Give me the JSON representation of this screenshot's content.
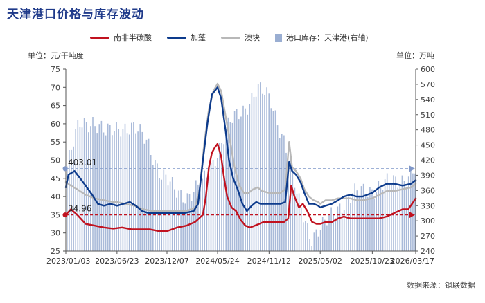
{
  "title": "天津港口价格与库存波动",
  "unit_left": "单位：元/干吨度",
  "unit_right": "单位：万吨",
  "source": "数据来源：钢联数据",
  "legend": [
    {
      "label": "南非半碳酸",
      "color": "#c1121f",
      "kind": "line"
    },
    {
      "label": "加蓬",
      "color": "#0d3b8c",
      "kind": "line"
    },
    {
      "label": "澳块",
      "color": "#b8b8b8",
      "kind": "line"
    },
    {
      "label": "港口库存：天津港(右轴)",
      "color": "#9aaed2",
      "kind": "bar"
    }
  ],
  "chart_data": {
    "type": "line",
    "x_ticks": [
      "2023/01/03",
      "2023/06/23",
      "2023/12/07",
      "2024/05/24",
      "2024/11/12",
      "2025/05/02",
      "2025/10/23",
      "2026/03/17"
    ],
    "x_range": [
      "2023/01/03",
      "2026/03/17"
    ],
    "ylim_left": [
      25,
      75
    ],
    "yticks_left": [
      25,
      30,
      35,
      40,
      45,
      50,
      55,
      60,
      65,
      70,
      75
    ],
    "ylim_right": [
      240,
      600
    ],
    "yticks_right": [
      240,
      270,
      300,
      330,
      360,
      390,
      420,
      450,
      480,
      510,
      540,
      570,
      600
    ],
    "annotations": [
      {
        "text": "403.01",
        "series": "港口库存：天津港(右轴)",
        "value": 403.01,
        "axis": "right",
        "color": "#7f97c8"
      },
      {
        "text": "34.96",
        "series": "南非半碳酸",
        "value": 34.96,
        "axis": "left",
        "color": "#c1121f"
      }
    ],
    "series": [
      {
        "name": "南非半碳酸",
        "axis": "left",
        "color": "#c1121f",
        "points": [
          [
            "2023/01/03",
            34.96
          ],
          [
            "2023/01/20",
            36.5
          ],
          [
            "2023/02/10",
            35
          ],
          [
            "2023/03/10",
            32.5
          ],
          [
            "2023/04/10",
            32
          ],
          [
            "2023/05/10",
            31.5
          ],
          [
            "2023/06/10",
            31.2
          ],
          [
            "2023/07/10",
            31.5
          ],
          [
            "2023/08/10",
            31
          ],
          [
            "2023/09/10",
            31
          ],
          [
            "2023/10/10",
            31
          ],
          [
            "2023/11/10",
            30.5
          ],
          [
            "2023/12/07",
            30.5
          ],
          [
            "2024/01/10",
            31.5
          ],
          [
            "2024/02/10",
            32
          ],
          [
            "2024/03/10",
            33
          ],
          [
            "2024/04/05",
            35
          ],
          [
            "2024/04/15",
            40
          ],
          [
            "2024/04/25",
            48
          ],
          [
            "2024/05/05",
            52
          ],
          [
            "2024/05/15",
            53.5
          ],
          [
            "2024/05/24",
            54.5
          ],
          [
            "2024/06/05",
            51
          ],
          [
            "2024/06/15",
            45
          ],
          [
            "2024/06/25",
            40
          ],
          [
            "2024/07/10",
            37
          ],
          [
            "2024/07/25",
            36
          ],
          [
            "2024/08/10",
            33.5
          ],
          [
            "2024/08/25",
            32
          ],
          [
            "2024/09/10",
            31.5
          ],
          [
            "2024/09/25",
            32
          ],
          [
            "2024/10/10",
            32.5
          ],
          [
            "2024/10/25",
            33
          ],
          [
            "2024/11/12",
            33
          ],
          [
            "2024/11/30",
            33
          ],
          [
            "2024/12/15",
            33
          ],
          [
            "2025/01/01",
            33
          ],
          [
            "2025/01/15",
            34
          ],
          [
            "2025/01/25",
            43
          ],
          [
            "2025/02/05",
            40
          ],
          [
            "2025/02/20",
            37
          ],
          [
            "2025/03/05",
            38
          ],
          [
            "2025/03/20",
            36
          ],
          [
            "2025/04/05",
            33
          ],
          [
            "2025/04/20",
            32.5
          ],
          [
            "2025/05/02",
            32.5
          ],
          [
            "2025/05/20",
            33
          ],
          [
            "2025/06/10",
            33
          ],
          [
            "2025/07/01",
            34
          ],
          [
            "2025/07/20",
            34.5
          ],
          [
            "2025/08/10",
            34
          ],
          [
            "2025/09/01",
            34
          ],
          [
            "2025/09/20",
            34
          ],
          [
            "2025/10/23",
            34
          ],
          [
            "2025/11/15",
            34
          ],
          [
            "2025/12/10",
            34.5
          ],
          [
            "2026/01/05",
            35.5
          ],
          [
            "2026/02/01",
            36.5
          ],
          [
            "2026/02/20",
            36.5
          ],
          [
            "2026/03/05",
            38
          ],
          [
            "2026/03/17",
            39.5
          ]
        ]
      },
      {
        "name": "加蓬",
        "axis": "left",
        "color": "#0d3b8c",
        "points": [
          [
            "2023/01/03",
            42.5
          ],
          [
            "2023/01/12",
            46
          ],
          [
            "2023/02/01",
            47
          ],
          [
            "2023/02/20",
            45
          ],
          [
            "2023/03/10",
            43
          ],
          [
            "2023/04/01",
            40.5
          ],
          [
            "2023/04/20",
            38
          ],
          [
            "2023/05/10",
            37.5
          ],
          [
            "2023/06/01",
            38
          ],
          [
            "2023/06/23",
            37.5
          ],
          [
            "2023/07/15",
            38
          ],
          [
            "2023/08/05",
            38.5
          ],
          [
            "2023/08/25",
            37.5
          ],
          [
            "2023/09/15",
            36
          ],
          [
            "2023/10/05",
            35.5
          ],
          [
            "2023/10/25",
            35.5
          ],
          [
            "2023/11/15",
            35.5
          ],
          [
            "2023/12/07",
            35.5
          ],
          [
            "2024/01/05",
            35.5
          ],
          [
            "2024/02/05",
            35.5
          ],
          [
            "2024/03/05",
            36
          ],
          [
            "2024/03/20",
            38
          ],
          [
            "2024/04/05",
            50
          ],
          [
            "2024/04/20",
            60
          ],
          [
            "2024/05/05",
            68
          ],
          [
            "2024/05/24",
            70
          ],
          [
            "2024/06/05",
            67
          ],
          [
            "2024/06/20",
            58
          ],
          [
            "2024/07/01",
            50
          ],
          [
            "2024/07/15",
            45
          ],
          [
            "2024/07/30",
            42
          ],
          [
            "2024/08/15",
            38
          ],
          [
            "2024/08/30",
            36
          ],
          [
            "2024/09/15",
            37.5
          ],
          [
            "2024/09/30",
            38.5
          ],
          [
            "2024/10/15",
            38
          ],
          [
            "2024/11/12",
            38
          ],
          [
            "2024/12/01",
            38
          ],
          [
            "2024/12/20",
            38
          ],
          [
            "2025/01/05",
            38.5
          ],
          [
            "2025/01/18",
            49.5
          ],
          [
            "2025/01/28",
            47
          ],
          [
            "2025/02/10",
            46
          ],
          [
            "2025/02/25",
            44
          ],
          [
            "2025/03/10",
            41
          ],
          [
            "2025/03/25",
            38
          ],
          [
            "2025/04/10",
            38
          ],
          [
            "2025/04/25",
            37.5
          ],
          [
            "2025/05/02",
            37
          ],
          [
            "2025/05/20",
            37.5
          ],
          [
            "2025/06/10",
            38
          ],
          [
            "2025/07/01",
            39
          ],
          [
            "2025/07/20",
            40
          ],
          [
            "2025/08/10",
            40.5
          ],
          [
            "2025/09/01",
            40
          ],
          [
            "2025/09/20",
            40
          ],
          [
            "2025/10/23",
            41
          ],
          [
            "2025/11/15",
            42.5
          ],
          [
            "2025/12/10",
            43.5
          ],
          [
            "2026/01/05",
            43.5
          ],
          [
            "2026/02/01",
            43
          ],
          [
            "2026/03/01",
            43.5
          ],
          [
            "2026/03/17",
            44.5
          ]
        ]
      },
      {
        "name": "澳块",
        "axis": "left",
        "color": "#b8b8b8",
        "points": [
          [
            "2023/01/03",
            44
          ],
          [
            "2023/01/20",
            43
          ],
          [
            "2023/02/10",
            42
          ],
          [
            "2023/03/10",
            40.5
          ],
          [
            "2023/04/10",
            39.5
          ],
          [
            "2023/05/10",
            39
          ],
          [
            "2023/06/10",
            38.5
          ],
          [
            "2023/06/23",
            38.5
          ],
          [
            "2023/07/20",
            38
          ],
          [
            "2023/08/20",
            37.5
          ],
          [
            "2023/09/20",
            36.5
          ],
          [
            "2023/10/20",
            36
          ],
          [
            "2023/11/20",
            36
          ],
          [
            "2023/12/07",
            36
          ],
          [
            "2024/01/10",
            36
          ],
          [
            "2024/02/10",
            36
          ],
          [
            "2024/03/10",
            37
          ],
          [
            "2024/03/25",
            42
          ],
          [
            "2024/04/10",
            55
          ],
          [
            "2024/04/25",
            64
          ],
          [
            "2024/05/10",
            69
          ],
          [
            "2024/05/24",
            71
          ],
          [
            "2024/06/05",
            69
          ],
          [
            "2024/06/20",
            62
          ],
          [
            "2024/07/05",
            55
          ],
          [
            "2024/07/20",
            48
          ],
          [
            "2024/08/05",
            43
          ],
          [
            "2024/08/20",
            41
          ],
          [
            "2024/09/05",
            41
          ],
          [
            "2024/09/20",
            42
          ],
          [
            "2024/10/05",
            42.5
          ],
          [
            "2024/10/20",
            41.5
          ],
          [
            "2024/11/12",
            41
          ],
          [
            "2024/12/01",
            41
          ],
          [
            "2024/12/20",
            41
          ],
          [
            "2025/01/05",
            42
          ],
          [
            "2025/01/18",
            55
          ],
          [
            "2025/01/28",
            48
          ],
          [
            "2025/02/10",
            47
          ],
          [
            "2025/02/25",
            45
          ],
          [
            "2025/03/10",
            42
          ],
          [
            "2025/03/25",
            40
          ],
          [
            "2025/04/10",
            39
          ],
          [
            "2025/04/25",
            38.5
          ],
          [
            "2025/05/02",
            38
          ],
          [
            "2025/05/20",
            39
          ],
          [
            "2025/06/10",
            39
          ],
          [
            "2025/07/01",
            39.5
          ],
          [
            "2025/07/20",
            39.5
          ],
          [
            "2025/08/10",
            39.5
          ],
          [
            "2025/09/01",
            39
          ],
          [
            "2025/09/20",
            39
          ],
          [
            "2025/10/23",
            39.5
          ],
          [
            "2025/11/15",
            40.5
          ],
          [
            "2025/12/10",
            41.5
          ],
          [
            "2026/01/05",
            41.5
          ],
          [
            "2026/02/01",
            42
          ],
          [
            "2026/03/01",
            42.5
          ],
          [
            "2026/03/17",
            43.5
          ]
        ]
      },
      {
        "name": "港口库存：天津港(右轴)",
        "type": "bar",
        "axis": "right",
        "color": "#9aaed2",
        "points": [
          [
            "2023/01/03",
            403.01
          ],
          [
            "2023/02/15",
            490
          ],
          [
            "2023/04/01",
            500
          ],
          [
            "2023/05/15",
            470
          ],
          [
            "2023/07/01",
            490
          ],
          [
            "2023/08/15",
            480
          ],
          [
            "2023/10/01",
            460
          ],
          [
            "2023/11/15",
            390
          ],
          [
            "2023/12/31",
            360
          ],
          [
            "2024/02/15",
            350
          ],
          [
            "2024/04/01",
            370
          ],
          [
            "2024/05/15",
            430
          ],
          [
            "2024/07/01",
            490
          ],
          [
            "2024/08/15",
            520
          ],
          [
            "2024/10/01",
            560
          ],
          [
            "2024/11/15",
            540
          ],
          [
            "2024/12/31",
            460
          ],
          [
            "2025/02/15",
            340
          ],
          [
            "2025/04/01",
            270
          ],
          [
            "2025/05/15",
            290
          ],
          [
            "2025/07/01",
            330
          ],
          [
            "2025/08/15",
            350
          ],
          [
            "2025/10/01",
            360
          ],
          [
            "2025/11/15",
            370
          ],
          [
            "2026/01/01",
            375
          ],
          [
            "2026/02/15",
            390
          ],
          [
            "2026/03/17",
            403
          ]
        ]
      }
    ]
  }
}
